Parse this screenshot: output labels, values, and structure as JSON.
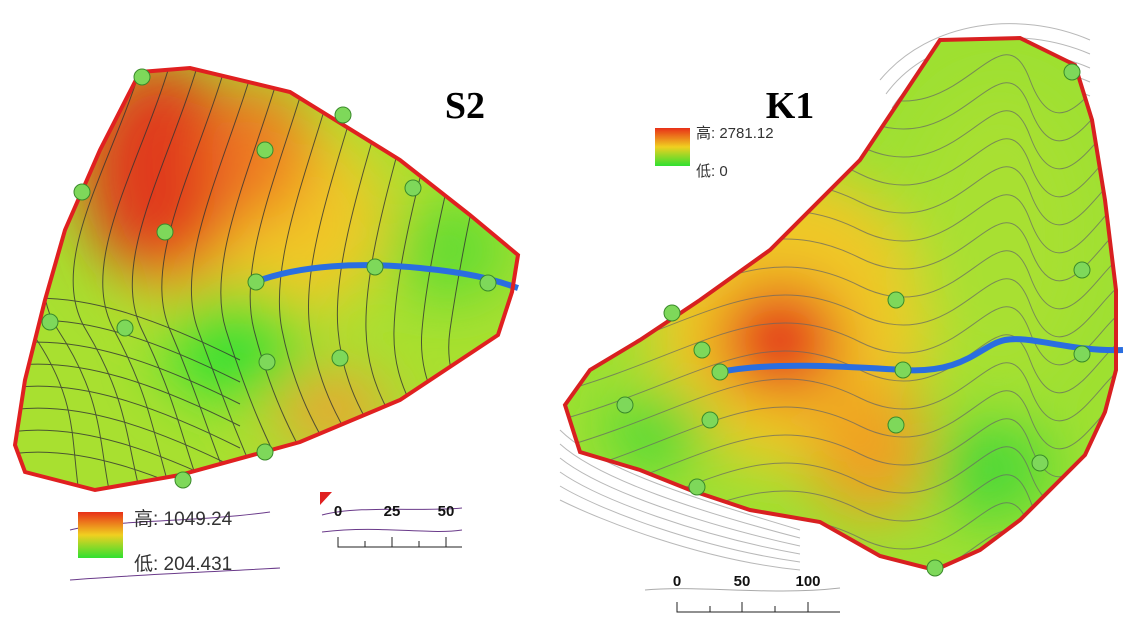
{
  "maps": [
    {
      "title": "S2",
      "legend": {
        "high": "高: 1049.24",
        "low": "低: 204.431"
      },
      "scale": [
        "0",
        "25",
        "50"
      ]
    },
    {
      "title": "K1",
      "legend": {
        "high": "高: 2781.12",
        "low": "低: 0"
      },
      "scale": [
        "0",
        "50",
        "100"
      ]
    }
  ]
}
